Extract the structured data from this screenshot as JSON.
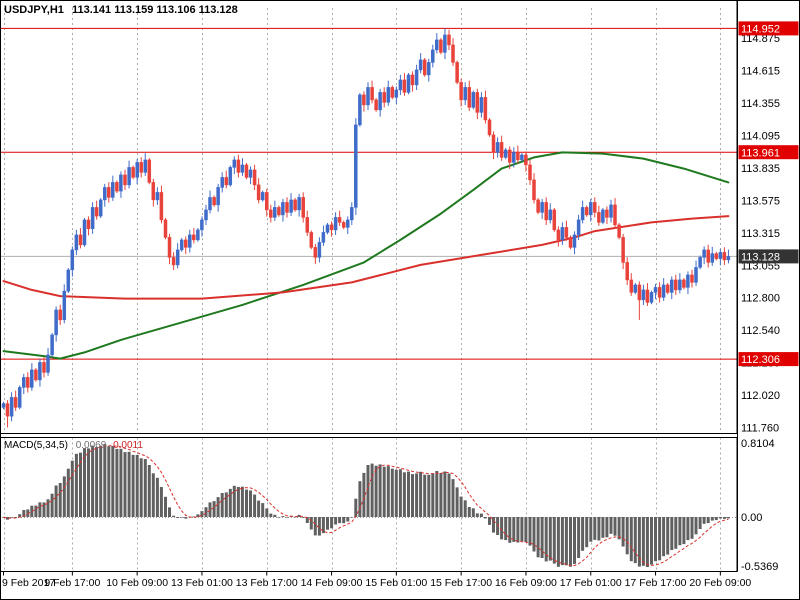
{
  "chart": {
    "title_symbol": "USDJPY,H1",
    "title_values": "113.141 113.159 113.106 113.128",
    "ohlc_display": {
      "open": "113.141",
      "high": "113.159",
      "low": "113.106",
      "close": "113.128"
    }
  },
  "macd": {
    "label": "MACD(5,34,5)",
    "value_main": "0.0069",
    "value_signal": "0.0011"
  },
  "colors": {
    "up_candle": "#3f6bc9",
    "down_candle": "#e8423a",
    "ma_green": "#1f7a1f",
    "ma_red": "#d9302c",
    "level_red": "#e00000",
    "current_price_bg": "#333333",
    "grid": "#ababab",
    "bid_line": "#b0b0b0",
    "macd_hist": "#606060",
    "macd_signal": "#d9302c",
    "border": "#000000"
  },
  "chart_data": [
    {
      "type": "candlestick",
      "title": "USDJPY,H1",
      "timeframe_hours": 1,
      "ylim": [
        111.715,
        115.115
      ],
      "price_axis_ticks": [
        "114.875",
        "114.615",
        "114.355",
        "114.095",
        "113.835",
        "113.575",
        "113.315",
        "113.055",
        "112.800",
        "112.540",
        "112.280",
        "112.020",
        "111.760"
      ],
      "levels": [
        {
          "price": 114.952,
          "label": "114.952"
        },
        {
          "price": 113.961,
          "label": "113.961"
        },
        {
          "price": 112.306,
          "label": "112.306"
        }
      ],
      "current_price": {
        "price": 113.128,
        "label": "113.128"
      },
      "first_open": 111.92,
      "closes": [
        111.95,
        111.85,
        112.0,
        111.92,
        112.08,
        112.16,
        112.08,
        112.22,
        112.14,
        112.28,
        112.2,
        112.34,
        112.5,
        112.7,
        112.62,
        112.85,
        113.02,
        113.18,
        113.3,
        113.22,
        113.42,
        113.35,
        113.52,
        113.45,
        113.58,
        113.68,
        113.6,
        113.72,
        113.65,
        113.78,
        113.7,
        113.84,
        113.76,
        113.88,
        113.8,
        113.9,
        113.72,
        113.58,
        113.64,
        113.42,
        113.28,
        113.12,
        113.06,
        113.18,
        113.26,
        113.2,
        113.3,
        113.26,
        113.34,
        113.42,
        113.5,
        113.6,
        113.54,
        113.68,
        113.76,
        113.7,
        113.84,
        113.9,
        113.8,
        113.86,
        113.76,
        113.82,
        113.7,
        113.58,
        113.64,
        113.5,
        113.44,
        113.52,
        113.46,
        113.56,
        113.48,
        113.58,
        113.5,
        113.6,
        113.44,
        113.32,
        113.2,
        113.12,
        113.24,
        113.32,
        113.38,
        113.34,
        113.44,
        113.4,
        113.36,
        113.42,
        113.52,
        114.18,
        114.42,
        114.34,
        114.48,
        114.38,
        114.3,
        114.44,
        114.36,
        114.48,
        114.4,
        114.46,
        114.54,
        114.44,
        114.58,
        114.5,
        114.62,
        114.7,
        114.58,
        114.68,
        114.78,
        114.86,
        114.76,
        114.9,
        114.82,
        114.68,
        114.52,
        114.38,
        114.48,
        114.32,
        114.44,
        114.28,
        114.4,
        114.22,
        114.1,
        113.96,
        114.04,
        113.92,
        113.98,
        113.88,
        113.96,
        113.9,
        113.94,
        113.86,
        113.74,
        113.58,
        113.48,
        113.56,
        113.42,
        113.5,
        113.34,
        113.26,
        113.36,
        113.28,
        113.2,
        113.3,
        113.42,
        113.52,
        113.46,
        113.56,
        113.48,
        113.4,
        113.5,
        113.44,
        113.54,
        113.38,
        113.28,
        113.08,
        112.94,
        112.84,
        112.9,
        112.78,
        112.86,
        112.76,
        112.84,
        112.88,
        112.8,
        112.9,
        112.84,
        112.94,
        112.86,
        112.94,
        112.88,
        112.98,
        112.92,
        113.04,
        113.12,
        113.18,
        113.08,
        113.15,
        113.11,
        113.16,
        113.1,
        113.128
      ],
      "wick_overrides": [
        {
          "i": 1,
          "low": 111.76
        },
        {
          "i": 87,
          "low": 113.46
        },
        {
          "i": 109,
          "high": 114.952
        },
        {
          "i": 157,
          "low": 112.62
        }
      ],
      "moving_averages": [
        {
          "name": "ma-slow-green",
          "color_key": "ma_green",
          "points": [
            [
              0,
              112.37
            ],
            [
              10,
              112.33
            ],
            [
              14,
              112.31
            ],
            [
              20,
              112.36
            ],
            [
              29,
              112.46
            ],
            [
              44,
              112.6
            ],
            [
              59,
              112.74
            ],
            [
              74,
              112.9
            ],
            [
              89,
              113.08
            ],
            [
              98,
              113.26
            ],
            [
              108,
              113.47
            ],
            [
              116,
              113.66
            ],
            [
              123,
              113.83
            ],
            [
              131,
              113.92
            ],
            [
              138,
              113.96
            ],
            [
              148,
              113.95
            ],
            [
              158,
              113.91
            ],
            [
              168,
              113.83
            ],
            [
              179,
              113.72
            ]
          ]
        },
        {
          "name": "ma-flat-red",
          "color_key": "ma_red",
          "points": [
            [
              0,
              112.93
            ],
            [
              7,
              112.86
            ],
            [
              14,
              112.81
            ],
            [
              30,
              112.79
            ],
            [
              49,
              112.79
            ],
            [
              69,
              112.84
            ],
            [
              86,
              112.92
            ],
            [
              103,
              113.06
            ],
            [
              118,
              113.14
            ],
            [
              133,
              113.22
            ],
            [
              141,
              113.28
            ],
            [
              146,
              113.33
            ],
            [
              160,
              113.4
            ],
            [
              170,
              113.43
            ],
            [
              179,
              113.45
            ]
          ]
        }
      ],
      "time_ticks": [
        {
          "bar": 0,
          "label": "9 Feb 2017"
        },
        {
          "bar": 17,
          "label": "9 Feb 17:00"
        },
        {
          "bar": 33,
          "label": "10 Feb 09:00"
        },
        {
          "bar": 49,
          "label": "13 Feb 01:00"
        },
        {
          "bar": 65,
          "label": "13 Feb 17:00"
        },
        {
          "bar": 81,
          "label": "14 Feb 09:00"
        },
        {
          "bar": 97,
          "label": "15 Feb 01:00"
        },
        {
          "bar": 113,
          "label": "15 Feb 17:00"
        },
        {
          "bar": 129,
          "label": "16 Feb 09:00"
        },
        {
          "bar": 145,
          "label": "17 Feb 01:00"
        },
        {
          "bar": 161,
          "label": "17 Feb 17:00"
        },
        {
          "bar": 177,
          "label": "20 Feb 09:00"
        }
      ]
    },
    {
      "type": "bar",
      "title": "MACD(5,34,5)",
      "params": {
        "fast_ema": 5,
        "slow_ema": 34,
        "signal_sma": 5
      },
      "displayed_values": [
        "0.0069",
        "0.0011"
      ],
      "axis_ticks": [
        "0.8104",
        "0.00",
        "-0.5369"
      ],
      "ylim": [
        -0.5369,
        0.8104
      ],
      "derived_from": "EMA5 minus EMA34 of the candlestick closes; signal = SMA5 of MACD"
    }
  ]
}
